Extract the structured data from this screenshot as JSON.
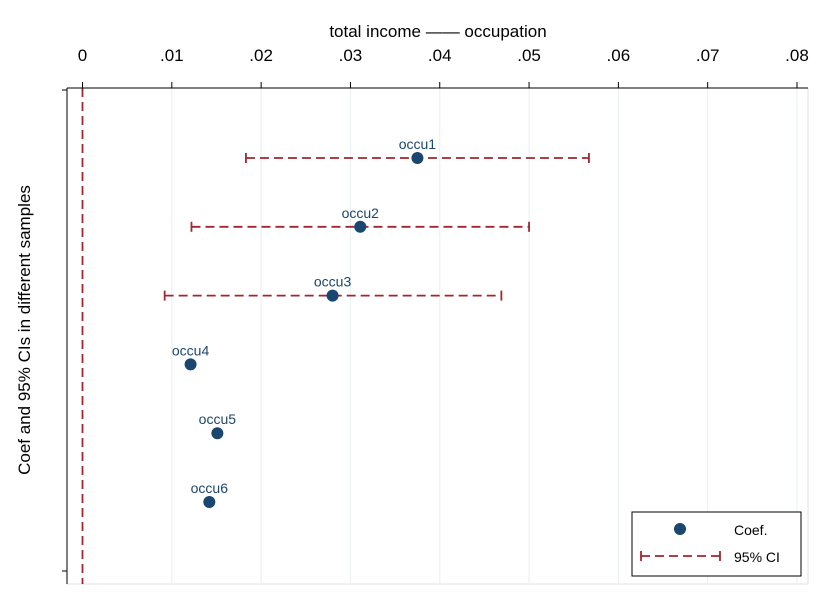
{
  "chart_data": {
    "type": "scatter",
    "title": "total income —— occupation",
    "xlabel": "total income —— occupation",
    "ylabel": "Coef and 95% CIs in different samples",
    "xlim": [
      0,
      0.08
    ],
    "x_ticks": [
      {
        "value": 0,
        "label": "0"
      },
      {
        "value": 0.01,
        "label": ".01"
      },
      {
        "value": 0.02,
        "label": ".02"
      },
      {
        "value": 0.03,
        "label": ".03"
      },
      {
        "value": 0.04,
        "label": ".04"
      },
      {
        "value": 0.05,
        "label": ".05"
      },
      {
        "value": 0.06,
        "label": ".06"
      },
      {
        "value": 0.07,
        "label": ".07"
      },
      {
        "value": 0.08,
        "label": ".08"
      }
    ],
    "x_axis_position": "top",
    "grid": true,
    "reference_line": {
      "x": 0,
      "style": "dashed",
      "color": "#a0262f"
    },
    "points": [
      {
        "label": "occu1",
        "coef": 0.0375,
        "ci": [
          0.0183,
          0.0567
        ]
      },
      {
        "label": "occu2",
        "coef": 0.0311,
        "ci": [
          0.0122,
          0.05
        ]
      },
      {
        "label": "occu3",
        "coef": 0.028,
        "ci": [
          0.0092,
          0.0469
        ]
      },
      {
        "label": "occu4",
        "coef": 0.0121,
        "ci": null
      },
      {
        "label": "occu5",
        "coef": 0.0151,
        "ci": null
      },
      {
        "label": "occu6",
        "coef": 0.0142,
        "ci": null
      }
    ],
    "legend": {
      "position": "bottom-right",
      "items": [
        {
          "label": "Coef.",
          "marker": "dot"
        },
        {
          "label": "95% CI",
          "marker": "dashed-capped-line"
        }
      ]
    },
    "colors": {
      "marker": "#1a476f",
      "ci": "#a0262f",
      "label_text": "#1a476f",
      "grid": "#eaf2f3",
      "axis": "#000000"
    }
  }
}
